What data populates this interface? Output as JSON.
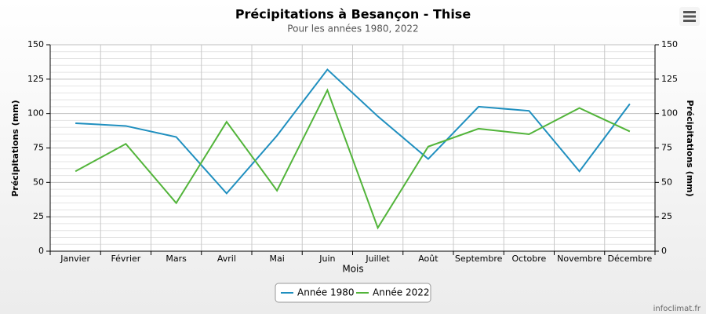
{
  "chart_data": {
    "type": "line",
    "title": "Précipitations à Besançon - Thise",
    "subtitle": "Pour les années 1980, 2022",
    "x_label": "Mois",
    "y_label": "Précipitations (mm)",
    "y2_label": "Précipitations (mm)",
    "credit": "infoclimat.fr",
    "categories": [
      "Janvier",
      "Février",
      "Mars",
      "Avril",
      "Mai",
      "Juin",
      "Juillet",
      "Août",
      "Septembre",
      "Octobre",
      "Novembre",
      "Décembre"
    ],
    "series": [
      {
        "name": "Année 1980",
        "color": "#1f8fbf",
        "values": [
          93,
          91,
          83,
          42,
          84,
          132,
          98,
          67,
          105,
          102,
          58,
          107
        ]
      },
      {
        "name": "Année 2022",
        "color": "#52b43a",
        "values": [
          58,
          78,
          35,
          94,
          44,
          117,
          17,
          76,
          89,
          85,
          104,
          87
        ]
      }
    ],
    "ylim": [
      0,
      150
    ],
    "yticks": [
      0,
      25,
      50,
      75,
      100,
      125,
      150
    ],
    "y2lim": [
      0,
      150
    ],
    "y2ticks": [
      0,
      25,
      50,
      75,
      100,
      125,
      150
    ],
    "grid": true,
    "legend": "bottom"
  }
}
